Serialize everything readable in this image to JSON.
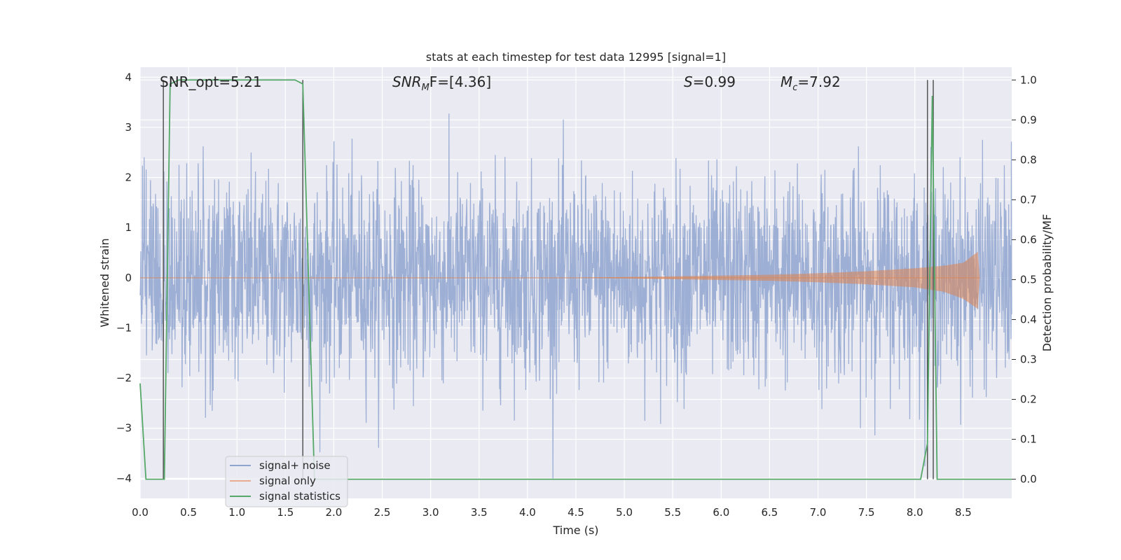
{
  "chart_data": {
    "type": "line",
    "title": "stats at each timestep for test data 12995 [signal=1]",
    "xlabel": "Time (s)",
    "ylabel_left": "Whitened strain",
    "ylabel_right": "Detection probability/MF",
    "xlim": [
      0.0,
      9.0
    ],
    "ylim_left": [
      -4.4,
      4.2
    ],
    "ylim_right": [
      -0.048,
      1.032
    ],
    "x_ticks": [
      0.0,
      0.5,
      1.0,
      1.5,
      2.0,
      2.5,
      3.0,
      3.5,
      4.0,
      4.5,
      5.0,
      5.5,
      6.0,
      6.5,
      7.0,
      7.5,
      8.0,
      8.5
    ],
    "x_tick_labels": [
      "0.0",
      "0.5",
      "1.0",
      "1.5",
      "2.0",
      "2.5",
      "3.0",
      "3.5",
      "4.0",
      "4.5",
      "5.0",
      "5.5",
      "6.0",
      "6.5",
      "7.0",
      "7.5",
      "8.0",
      "8.5"
    ],
    "y_ticks_left": [
      -4,
      -3,
      -2,
      -1,
      0,
      1,
      2,
      3,
      4
    ],
    "y_tick_labels_left": [
      "−4",
      "−3",
      "−2",
      "−1",
      "0",
      "1",
      "2",
      "3",
      "4"
    ],
    "y_ticks_right": [
      0.0,
      0.1,
      0.2,
      0.3,
      0.4,
      0.5,
      0.6,
      0.7,
      0.8,
      0.9,
      1.0
    ],
    "y_tick_labels_right": [
      "0.0",
      "0.1",
      "0.2",
      "0.3",
      "0.4",
      "0.5",
      "0.6",
      "0.7",
      "0.8",
      "0.9",
      "1.0"
    ],
    "grid": true,
    "legend_position": "bottom-left",
    "legend": [
      {
        "label": "signal+ noise",
        "color": "#8fa4cf"
      },
      {
        "label": "signal only",
        "color": "#dd8452"
      },
      {
        "label": "signal statistics",
        "color": "#55a868"
      }
    ],
    "annotations": {
      "snr_opt": "SNR_opt=5.21",
      "snr_mf_main": "SNR",
      "snr_mf_sub": "M",
      "snr_mf_rest": "F=[4.36]",
      "s_main": "S",
      "s_rest": "=0.99",
      "mc_main": "M",
      "mc_sub": "c",
      "mc_rest": "=7.92"
    },
    "series": [
      {
        "name": "signal statistics",
        "axis": "right",
        "x": [
          0.0,
          0.06,
          0.25,
          0.31,
          0.4,
          1.0,
          1.6,
          1.68,
          1.8,
          2.0,
          4.0,
          6.0,
          8.06,
          8.13,
          8.18,
          8.23,
          8.5,
          9.0
        ],
        "y": [
          0.24,
          0.0,
          0.0,
          0.99,
          1.0,
          1.0,
          1.0,
          0.99,
          0.0,
          0.0,
          0.0,
          0.0,
          0.0,
          0.09,
          0.96,
          0.0,
          0.0,
          0.0
        ]
      },
      {
        "name": "signal only",
        "axis": "left",
        "type": "envelope",
        "x": [
          0.0,
          4.5,
          5.5,
          6.5,
          7.0,
          7.5,
          8.0,
          8.3,
          8.5,
          8.65,
          8.67
        ],
        "upper": [
          0.0,
          0.0,
          0.03,
          0.06,
          0.09,
          0.13,
          0.19,
          0.24,
          0.3,
          0.52,
          0.0
        ],
        "lower": [
          0.0,
          0.0,
          -0.03,
          -0.06,
          -0.09,
          -0.13,
          -0.19,
          -0.28,
          -0.42,
          -0.62,
          0.0
        ]
      },
      {
        "name": "signal+ noise",
        "axis": "left",
        "type": "noise",
        "x_range": [
          0.0,
          9.0
        ],
        "sigma": 1.0,
        "clip": [
          -4.0,
          3.85
        ]
      }
    ],
    "event_markers_x": [
      0.24,
      1.68,
      8.13,
      8.19
    ]
  }
}
